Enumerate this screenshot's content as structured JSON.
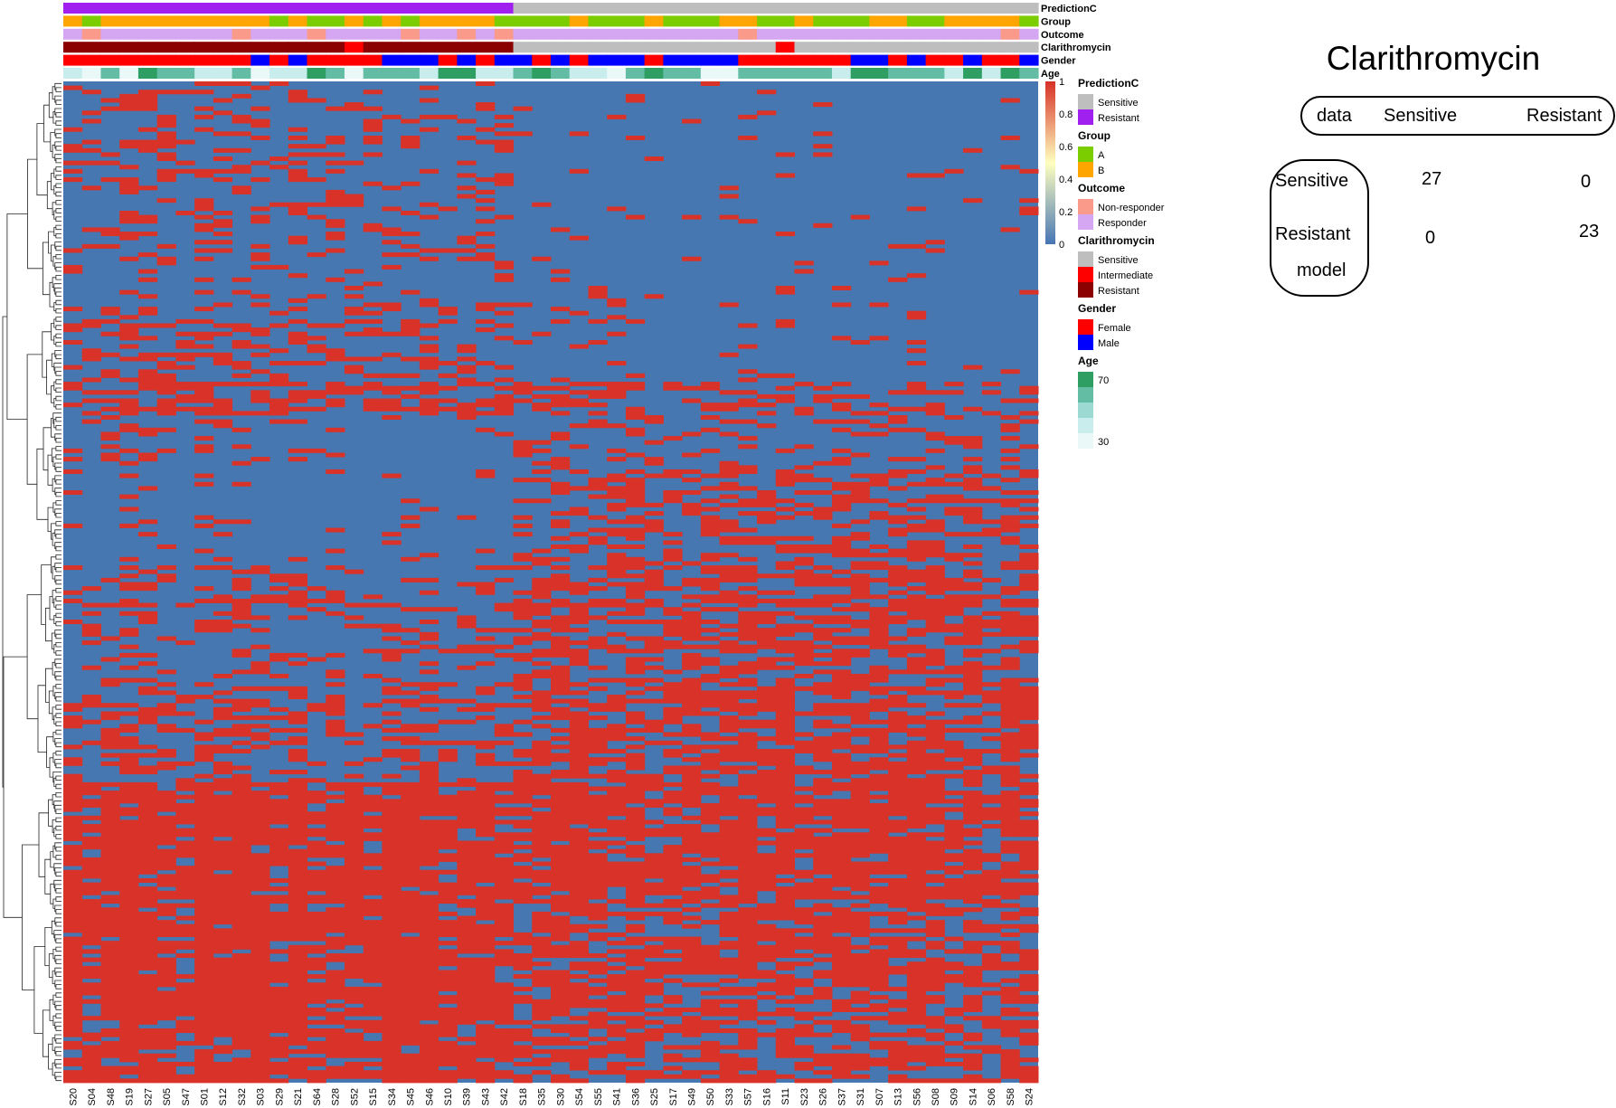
{
  "heatmap": {
    "annotation_tracks": [
      "PredictionC",
      "Group",
      "Outcome",
      "Clarithromycin",
      "Gender",
      "Age"
    ],
    "samples": [
      "S20",
      "S04",
      "S48",
      "S19",
      "S27",
      "S05",
      "S47",
      "S01",
      "S12",
      "S32",
      "S03",
      "S29",
      "S21",
      "S64",
      "S28",
      "S52",
      "S15",
      "S34",
      "S45",
      "S46",
      "S10",
      "S39",
      "S43",
      "S42",
      "S18",
      "S35",
      "S30",
      "S54",
      "S55",
      "S41",
      "S36",
      "S25",
      "S17",
      "S49",
      "S50",
      "S33",
      "S57",
      "S16",
      "S11",
      "S23",
      "S26",
      "S37",
      "S31",
      "S07",
      "S13",
      "S56",
      "S08",
      "S09",
      "S14",
      "S06",
      "S58",
      "S24"
    ],
    "annotations": {
      "PredictionC": [
        "R",
        "R",
        "R",
        "R",
        "R",
        "R",
        "R",
        "R",
        "R",
        "R",
        "R",
        "R",
        "R",
        "R",
        "R",
        "R",
        "R",
        "R",
        "R",
        "R",
        "R",
        "R",
        "R",
        "R",
        "S",
        "S",
        "S",
        "S",
        "S",
        "S",
        "S",
        "S",
        "S",
        "S",
        "S",
        "S",
        "S",
        "S",
        "S",
        "S",
        "S",
        "S",
        "S",
        "S",
        "S",
        "S",
        "S",
        "S",
        "S",
        "S",
        "S",
        "S"
      ],
      "Group": [
        "B",
        "A",
        "B",
        "B",
        "B",
        "B",
        "B",
        "B",
        "B",
        "B",
        "B",
        "A",
        "B",
        "A",
        "A",
        "B",
        "A",
        "B",
        "A",
        "B",
        "B",
        "B",
        "B",
        "A",
        "A",
        "A",
        "A",
        "B",
        "A",
        "A",
        "A",
        "B",
        "A",
        "A",
        "A",
        "B",
        "B",
        "A",
        "A",
        "B",
        "A",
        "A",
        "A",
        "B",
        "B",
        "A",
        "A",
        "B",
        "B",
        "B",
        "B",
        "A"
      ],
      "Outcome": [
        "R",
        "N",
        "R",
        "R",
        "R",
        "R",
        "R",
        "R",
        "R",
        "N",
        "R",
        "R",
        "R",
        "N",
        "R",
        "R",
        "R",
        "R",
        "N",
        "R",
        "R",
        "N",
        "R",
        "N",
        "R",
        "R",
        "R",
        "R",
        "R",
        "R",
        "R",
        "R",
        "R",
        "R",
        "R",
        "R",
        "N",
        "R",
        "R",
        "R",
        "R",
        "R",
        "R",
        "R",
        "R",
        "R",
        "R",
        "R",
        "R",
        "R",
        "N",
        "R"
      ],
      "Clarithromycin": [
        "R",
        "R",
        "R",
        "R",
        "R",
        "R",
        "R",
        "R",
        "R",
        "R",
        "R",
        "R",
        "R",
        "R",
        "R",
        "I",
        "R",
        "R",
        "R",
        "R",
        "R",
        "R",
        "R",
        "R",
        "S",
        "S",
        "S",
        "S",
        "S",
        "S",
        "S",
        "S",
        "S",
        "S",
        "S",
        "S",
        "S",
        "S",
        "I",
        "S",
        "S",
        "S",
        "S",
        "S",
        "S",
        "S",
        "S",
        "S",
        "S",
        "S",
        "S",
        "S"
      ],
      "Gender": [
        "F",
        "F",
        "F",
        "F",
        "F",
        "F",
        "F",
        "F",
        "F",
        "F",
        "M",
        "F",
        "M",
        "F",
        "F",
        "F",
        "F",
        "M",
        "M",
        "M",
        "F",
        "M",
        "F",
        "M",
        "M",
        "F",
        "M",
        "F",
        "M",
        "M",
        "M",
        "F",
        "M",
        "M",
        "M",
        "M",
        "F",
        "F",
        "F",
        "F",
        "F",
        "F",
        "M",
        "M",
        "F",
        "M",
        "F",
        "F",
        "M",
        "F",
        "F",
        "M"
      ],
      "Age": [
        2,
        1,
        3,
        1,
        4,
        3,
        3,
        2,
        2,
        3,
        1,
        2,
        2,
        4,
        3,
        1,
        3,
        3,
        3,
        2,
        4,
        4,
        2,
        2,
        3,
        4,
        3,
        2,
        2,
        1,
        3,
        4,
        3,
        3,
        1,
        1,
        3,
        3,
        3,
        3,
        3,
        2,
        4,
        4,
        3,
        3,
        3,
        2,
        4,
        2,
        4,
        3
      ]
    },
    "legends": [
      {
        "title": "PredictionC",
        "items": [
          {
            "label": "Sensitive",
            "color": "#BEBEBE"
          },
          {
            "label": "Resistant",
            "color": "#A020F0"
          }
        ]
      },
      {
        "title": "Group",
        "items": [
          {
            "label": "A",
            "color": "#7CCD00"
          },
          {
            "label": "B",
            "color": "#FFA500"
          }
        ]
      },
      {
        "title": "Outcome",
        "items": [
          {
            "label": "Non-responder",
            "color": "#FA9A8A"
          },
          {
            "label": "Responder",
            "color": "#D5A6F2"
          }
        ]
      },
      {
        "title": "Clarithromycin",
        "items": [
          {
            "label": "Sensitive",
            "color": "#BEBEBE"
          },
          {
            "label": "Intermediate",
            "color": "#FF0000"
          },
          {
            "label": "Resistant",
            "color": "#8B0000"
          }
        ]
      },
      {
        "title": "Gender",
        "items": [
          {
            "label": "Female",
            "color": "#FF0000"
          },
          {
            "label": "Male",
            "color": "#0000FF"
          }
        ]
      },
      {
        "title": "Age",
        "ticks": [
          "70",
          "30"
        ],
        "colors": [
          "#2E9E63",
          "#62BDA4",
          "#9BD9D2",
          "#C9ECEC",
          "#EAF8F8"
        ]
      }
    ],
    "colorbar": {
      "ticks": [
        "1",
        "0.8",
        "0.6",
        "0.4",
        "0.2",
        "0"
      ],
      "low_color": "#4575B4",
      "mid_color": "#FFFFBF",
      "high_color": "#D73027"
    },
    "colors": {
      "low": "#4777B0",
      "high": "#D93228"
    }
  },
  "confusion_table": {
    "title": "Clarithromycin",
    "data_label": "data",
    "model_label": "model",
    "col_headers": [
      "Sensitive",
      "Resistant"
    ],
    "row_headers": [
      "Sensitive",
      "Resistant"
    ],
    "values": [
      [
        27,
        0
      ],
      [
        0,
        23
      ]
    ]
  },
  "chart_data": [
    {
      "type": "heatmap",
      "title": "",
      "value_range": [
        0,
        1
      ],
      "x_labels": [
        "S20",
        "S04",
        "S48",
        "S19",
        "S27",
        "S05",
        "S47",
        "S01",
        "S12",
        "S32",
        "S03",
        "S29",
        "S21",
        "S64",
        "S28",
        "S52",
        "S15",
        "S34",
        "S45",
        "S46",
        "S10",
        "S39",
        "S43",
        "S42",
        "S18",
        "S35",
        "S30",
        "S54",
        "S55",
        "S41",
        "S36",
        "S25",
        "S17",
        "S49",
        "S50",
        "S33",
        "S57",
        "S16",
        "S11",
        "S23",
        "S26",
        "S37",
        "S31",
        "S07",
        "S13",
        "S56",
        "S08",
        "S09",
        "S14",
        "S06",
        "S58",
        "S24"
      ],
      "colorbar_ticks": [
        0,
        0.2,
        0.4,
        0.6,
        0.8,
        1
      ],
      "legend": "right"
    },
    {
      "type": "table",
      "title": "Clarithromycin",
      "columns": [
        "Sensitive",
        "Resistant"
      ],
      "rows": [
        "Sensitive",
        "Resistant"
      ],
      "values": [
        [
          27,
          0
        ],
        [
          0,
          23
        ]
      ]
    }
  ]
}
